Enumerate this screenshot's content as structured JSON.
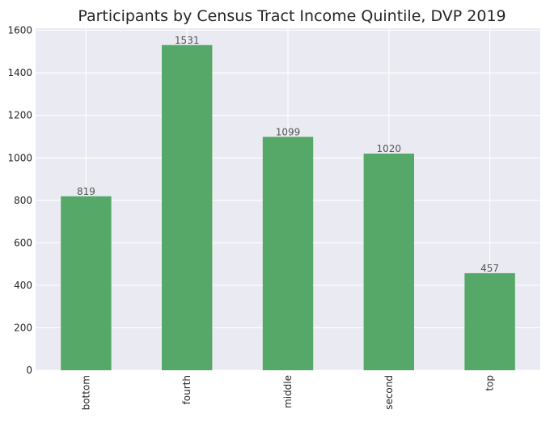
{
  "chart_data": {
    "type": "bar",
    "title": "Participants by Census Tract Income Quintile, DVP 2019",
    "xlabel": "",
    "ylabel": "",
    "categories": [
      "bottom",
      "fourth",
      "middle",
      "second",
      "top"
    ],
    "values": [
      819,
      1531,
      1099,
      1020,
      457
    ],
    "data_labels": [
      "819",
      "1531",
      "1099",
      "1020",
      "457"
    ],
    "ylim": [
      0,
      1610
    ],
    "yticks": [
      0,
      200,
      400,
      600,
      800,
      1000,
      1200,
      1400,
      1600
    ],
    "ytick_labels": [
      "0",
      "200",
      "400",
      "600",
      "800",
      "1000",
      "1200",
      "1400",
      "1600"
    ],
    "grid": true,
    "legend": "none",
    "colors": {
      "bar": "#55a868",
      "plot_background": "#eaeaf2",
      "grid": "#ffffff"
    }
  }
}
